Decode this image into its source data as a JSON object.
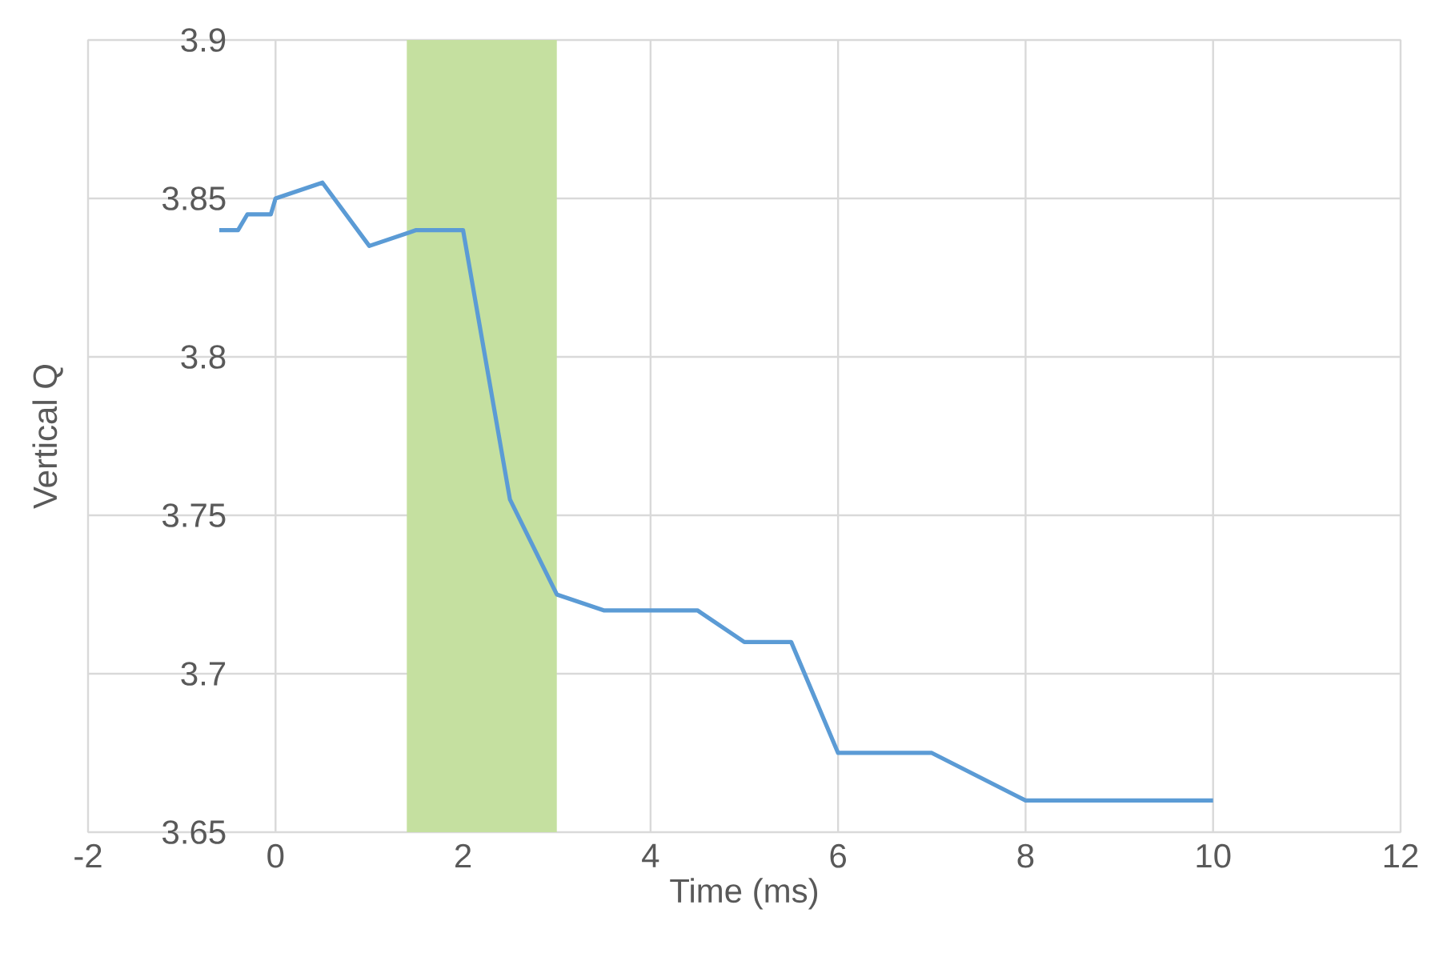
{
  "chart_data": {
    "type": "line",
    "xlabel": "Time (ms)",
    "ylabel": "Vertical Q",
    "x": [
      -0.6,
      -0.4,
      -0.3,
      -0.05,
      0,
      0.5,
      1,
      1.5,
      2,
      2.5,
      3,
      3.5,
      4.5,
      5,
      5.5,
      6,
      7,
      8,
      10
    ],
    "series": [
      {
        "color": "#5b9bd5",
        "values": [
          3.84,
          3.84,
          3.845,
          3.845,
          3.85,
          3.855,
          3.835,
          3.84,
          3.84,
          3.755,
          3.725,
          3.72,
          3.72,
          3.71,
          3.71,
          3.675,
          3.675,
          3.66,
          3.66
        ]
      }
    ],
    "xlim": [
      -2,
      12
    ],
    "ylim": [
      3.65,
      3.9
    ],
    "xticks": [
      -2,
      0,
      2,
      4,
      6,
      8,
      10,
      12
    ],
    "yticks": [
      3.65,
      3.7,
      3.75,
      3.8,
      3.85,
      3.9
    ],
    "bands": [
      {
        "axis": "x",
        "from": 1.4,
        "to": 3,
        "color": "#c5e0a0"
      }
    ],
    "grid": true,
    "marker": "none",
    "line_style": "solid"
  }
}
